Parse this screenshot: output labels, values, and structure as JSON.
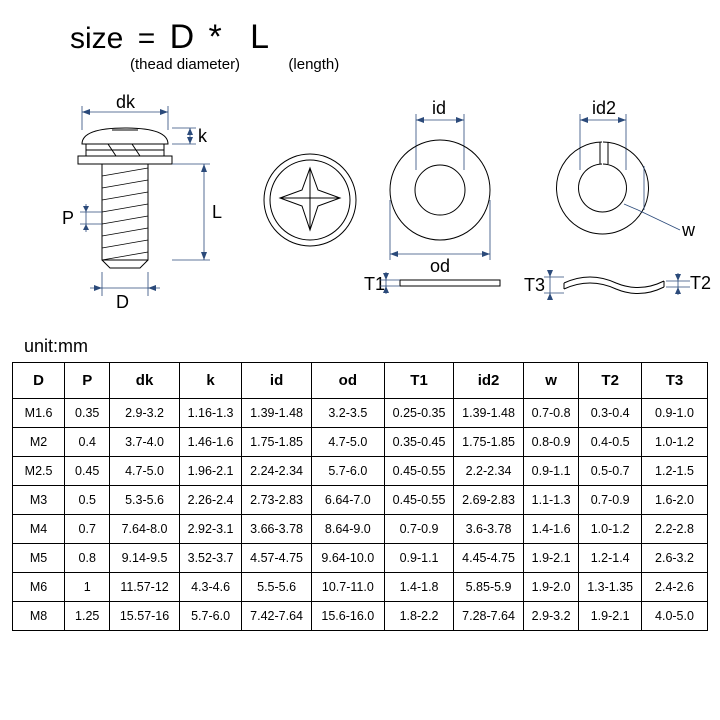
{
  "title": {
    "size_text": "size",
    "eq": "=",
    "D": "D",
    "star": "*",
    "L": "L",
    "sub_d": "(thead diameter)",
    "sub_l": "(length)"
  },
  "unit_label": "unit:mm",
  "diagram": {
    "labels": {
      "dk": "dk",
      "k": "k",
      "L": "L",
      "P": "P",
      "D": "D",
      "id": "id",
      "od": "od",
      "T1": "T1",
      "id2": "id2",
      "w": "w",
      "T2": "T2",
      "T3": "T3"
    },
    "colors": {
      "outline": "#000000",
      "dim_line": "#2b4a7a",
      "background": "#ffffff"
    }
  },
  "table": {
    "columns": [
      "D",
      "P",
      "dk",
      "k",
      "id",
      "od",
      "T1",
      "id2",
      "w",
      "T2",
      "T3"
    ],
    "rows": [
      [
        "M1.6",
        "0.35",
        "2.9-3.2",
        "1.16-1.3",
        "1.39-1.48",
        "3.2-3.5",
        "0.25-0.35",
        "1.39-1.48",
        "0.7-0.8",
        "0.3-0.4",
        "0.9-1.0"
      ],
      [
        "M2",
        "0.4",
        "3.7-4.0",
        "1.46-1.6",
        "1.75-1.85",
        "4.7-5.0",
        "0.35-0.45",
        "1.75-1.85",
        "0.8-0.9",
        "0.4-0.5",
        "1.0-1.2"
      ],
      [
        "M2.5",
        "0.45",
        "4.7-5.0",
        "1.96-2.1",
        "2.24-2.34",
        "5.7-6.0",
        "0.45-0.55",
        "2.2-2.34",
        "0.9-1.1",
        "0.5-0.7",
        "1.2-1.5"
      ],
      [
        "M3",
        "0.5",
        "5.3-5.6",
        "2.26-2.4",
        "2.73-2.83",
        "6.64-7.0",
        "0.45-0.55",
        "2.69-2.83",
        "1.1-1.3",
        "0.7-0.9",
        "1.6-2.0"
      ],
      [
        "M4",
        "0.7",
        "7.64-8.0",
        "2.92-3.1",
        "3.66-3.78",
        "8.64-9.0",
        "0.7-0.9",
        "3.6-3.78",
        "1.4-1.6",
        "1.0-1.2",
        "2.2-2.8"
      ],
      [
        "M5",
        "0.8",
        "9.14-9.5",
        "3.52-3.7",
        "4.57-4.75",
        "9.64-10.0",
        "0.9-1.1",
        "4.45-4.75",
        "1.9-2.1",
        "1.2-1.4",
        "2.6-3.2"
      ],
      [
        "M6",
        "1",
        "11.57-12",
        "4.3-4.6",
        "5.5-5.6",
        "10.7-11.0",
        "1.4-1.8",
        "5.85-5.9",
        "1.9-2.0",
        "1.3-1.35",
        "2.4-2.6"
      ],
      [
        "M8",
        "1.25",
        "15.57-16",
        "5.7-6.0",
        "7.42-7.64",
        "15.6-16.0",
        "1.8-2.2",
        "7.28-7.64",
        "2.9-3.2",
        "1.9-2.1",
        "4.0-5.0"
      ]
    ],
    "col_widths_pct": [
      7.5,
      6.5,
      10,
      9,
      10,
      10.5,
      10,
      10,
      8,
      9,
      9.5
    ]
  }
}
